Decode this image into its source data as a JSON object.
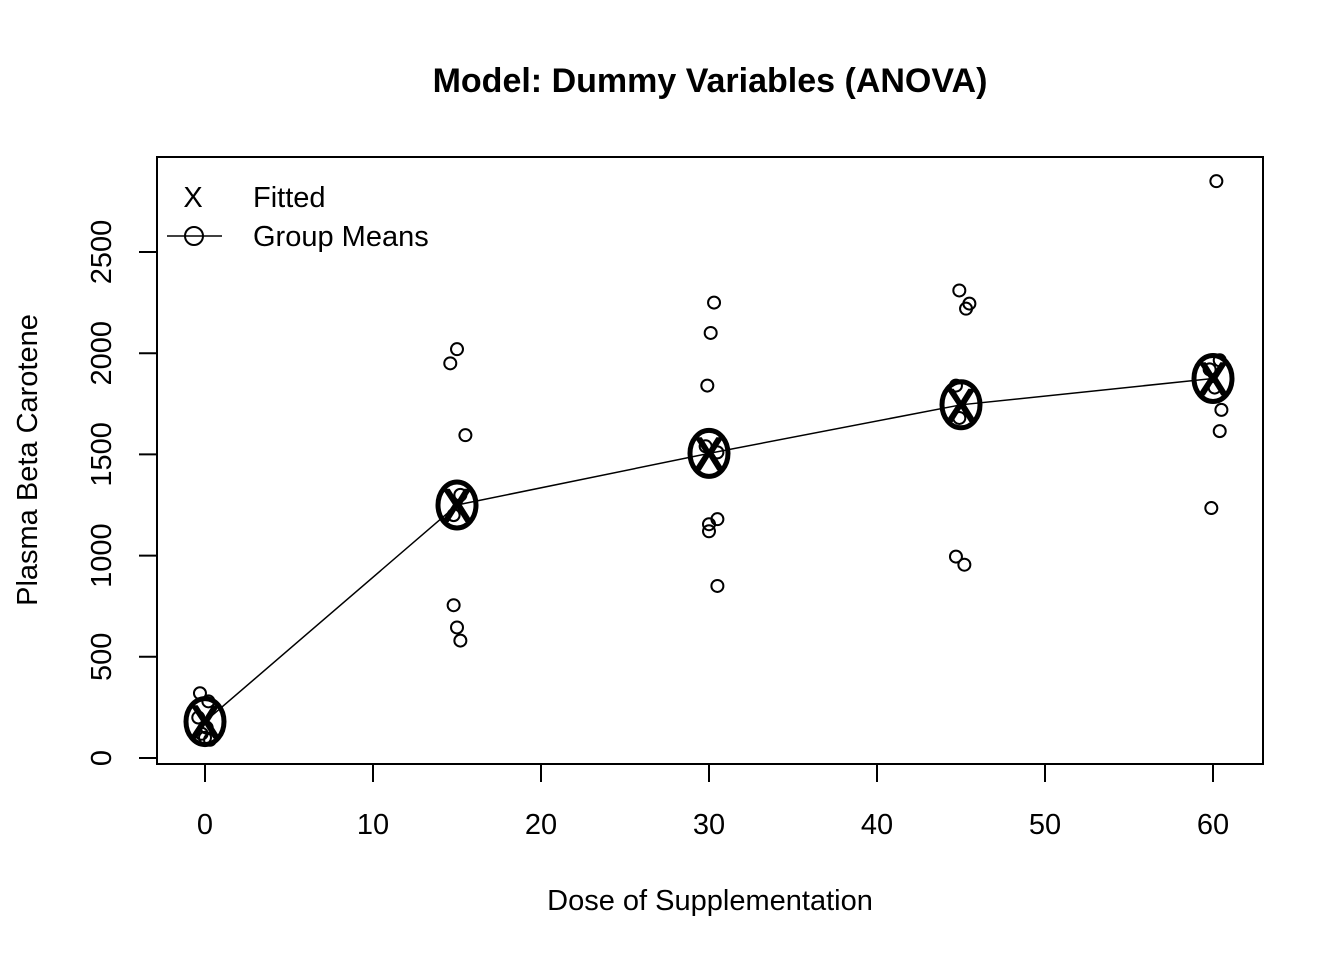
{
  "chart_data": {
    "type": "scatter",
    "title": "Model: Dummy Variables (ANOVA)",
    "xlabel": "Dose of Supplementation",
    "ylabel": "Plasma Beta Carotene",
    "xlim": [
      -3,
      63
    ],
    "ylim": [
      -30,
      2960
    ],
    "xticks": [
      0,
      10,
      20,
      30,
      40,
      50,
      60
    ],
    "yticks": [
      0,
      500,
      1000,
      1500,
      2000,
      2500
    ],
    "grid": false,
    "legend": {
      "position": "top-left",
      "entries": [
        {
          "label": "Fitted",
          "symbol": "X"
        },
        {
          "label": "Group Means",
          "symbol": "line-circle"
        }
      ]
    },
    "observations": [
      {
        "x": -0.3,
        "y": 320
      },
      {
        "x": 0.2,
        "y": 280
      },
      {
        "x": -0.4,
        "y": 200
      },
      {
        "x": 0.1,
        "y": 150
      },
      {
        "x": -0.2,
        "y": 120
      },
      {
        "x": 0.0,
        "y": 100
      },
      {
        "x": 0.3,
        "y": 90
      },
      {
        "x": 15.0,
        "y": 2020
      },
      {
        "x": 14.6,
        "y": 1950
      },
      {
        "x": 15.5,
        "y": 1595
      },
      {
        "x": 15.2,
        "y": 1300
      },
      {
        "x": 14.8,
        "y": 1200
      },
      {
        "x": 14.8,
        "y": 755
      },
      {
        "x": 15.0,
        "y": 645
      },
      {
        "x": 15.2,
        "y": 580
      },
      {
        "x": 30.3,
        "y": 2250
      },
      {
        "x": 30.1,
        "y": 2100
      },
      {
        "x": 29.9,
        "y": 1840
      },
      {
        "x": 30.5,
        "y": 1510
      },
      {
        "x": 29.8,
        "y": 1540
      },
      {
        "x": 30.5,
        "y": 1180
      },
      {
        "x": 30.0,
        "y": 1155
      },
      {
        "x": 30.0,
        "y": 1120
      },
      {
        "x": 30.5,
        "y": 850
      },
      {
        "x": 44.9,
        "y": 2310
      },
      {
        "x": 45.5,
        "y": 2245
      },
      {
        "x": 45.3,
        "y": 2220
      },
      {
        "x": 44.7,
        "y": 1840
      },
      {
        "x": 44.9,
        "y": 1680
      },
      {
        "x": 44.7,
        "y": 995
      },
      {
        "x": 45.2,
        "y": 955
      },
      {
        "x": 60.2,
        "y": 2850
      },
      {
        "x": 60.4,
        "y": 1965
      },
      {
        "x": 59.8,
        "y": 1920
      },
      {
        "x": 60.1,
        "y": 1830
      },
      {
        "x": 60.5,
        "y": 1720
      },
      {
        "x": 60.4,
        "y": 1615
      },
      {
        "x": 59.9,
        "y": 1235
      }
    ],
    "group_means": {
      "x": [
        0,
        15,
        30,
        45,
        60
      ],
      "y": [
        180,
        1250,
        1505,
        1745,
        1875
      ]
    },
    "fitted": {
      "x": [
        0,
        15,
        30,
        45,
        60
      ],
      "y": [
        180,
        1250,
        1505,
        1745,
        1875
      ]
    }
  }
}
